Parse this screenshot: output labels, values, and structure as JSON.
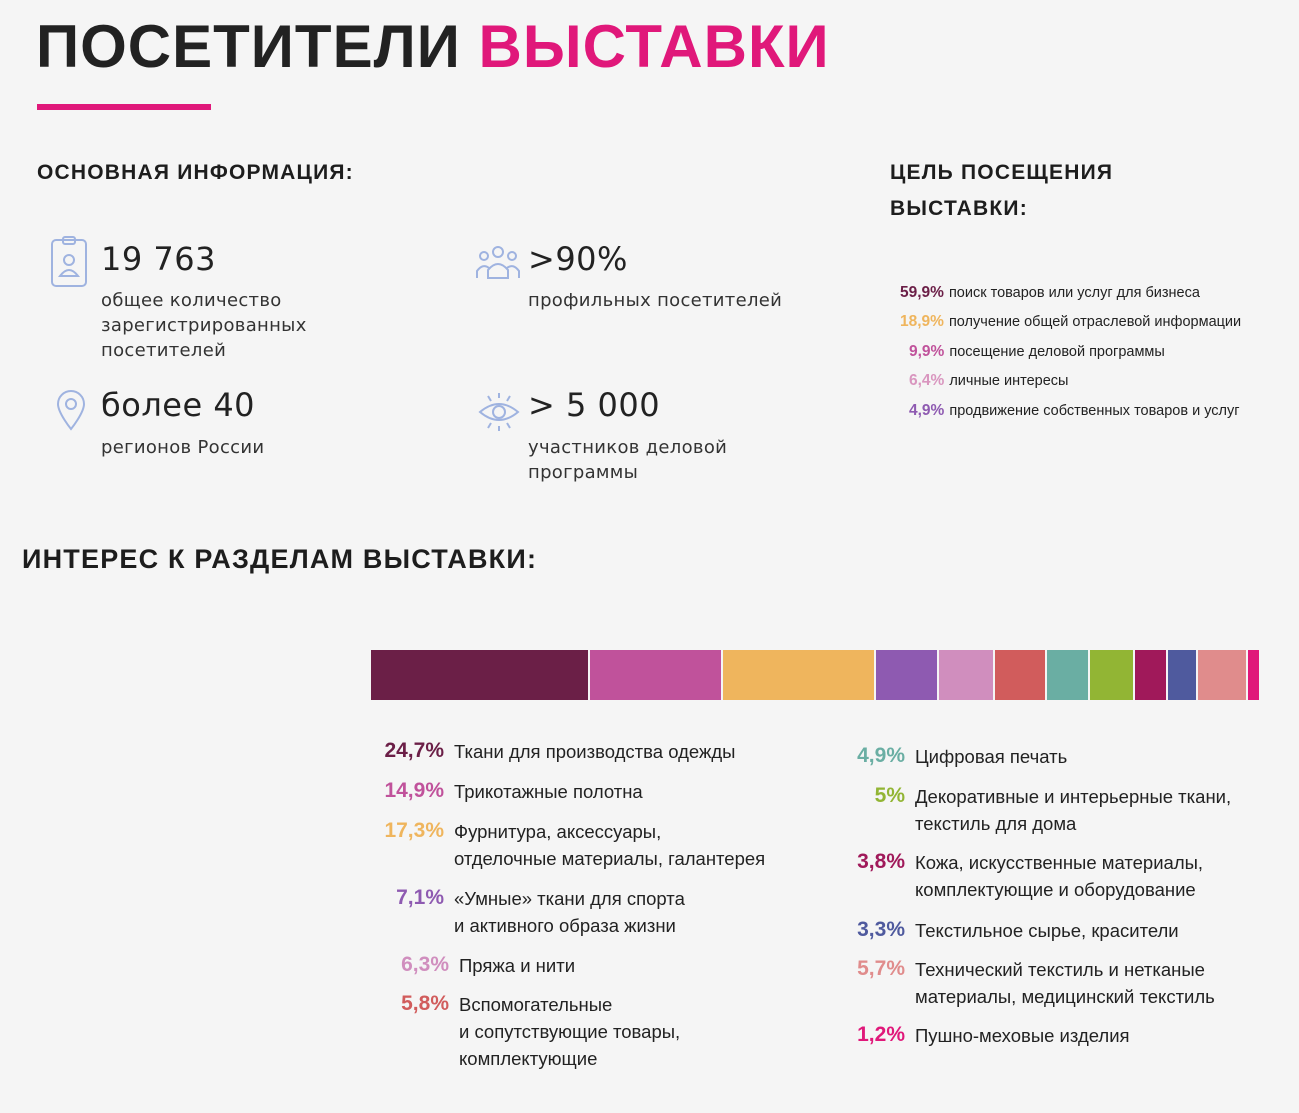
{
  "header": {
    "title_part1": "ПОСЕТИТЕЛИ",
    "title_part2": "ВЫСТАВКИ",
    "accent_color": "#e0187a"
  },
  "basic_info": {
    "heading": "ОСНОВНАЯ ИНФОРМАЦИЯ:",
    "stats": [
      {
        "icon": "id-badge-icon",
        "value": "19 763",
        "desc": "общее количество зарегистрированных посетителей"
      },
      {
        "icon": "group-icon",
        "value": ">90%",
        "desc": "профильных посетителей"
      },
      {
        "icon": "map-pin-icon",
        "value": "более 40",
        "desc": "регионов России"
      },
      {
        "icon": "eye-icon",
        "value": "> 5 000",
        "desc": "участников деловой программы"
      }
    ],
    "icon_color": "#9fb3e0"
  },
  "visit_goal": {
    "heading": "ЦЕЛЬ ПОСЕЩЕНИЯ ВЫСТАВКИ:",
    "items": [
      {
        "pct": "59,9%",
        "label": "поиск товаров или услуг для бизнеса",
        "color": "#6b1f47"
      },
      {
        "pct": "18,9%",
        "label": "получение общей отраслевой информации",
        "color": "#efb55d"
      },
      {
        "pct": "9,9%",
        "label": "посещение деловой программы",
        "color": "#c0529b"
      },
      {
        "pct": "6,4%",
        "label": "личные интересы",
        "color": "#d996bf"
      },
      {
        "pct": "4,9%",
        "label": "продвижение собственных товаров и услуг",
        "color": "#8e5ab1"
      }
    ]
  },
  "sections_interest": {
    "heading": "ИНТЕРЕС К РАЗДЕЛАМ ВЫСТАВКИ:"
  },
  "chart_data": {
    "type": "bar",
    "orientation": "horizontal-stacked",
    "title": "ИНТЕРЕС К РАЗДЕЛАМ ВЫСТАВКИ:",
    "categories": [
      "Ткани для производства одежды",
      "Трикотажные полотна",
      "Фурнитура, аксессуары, отделочные материалы, галантерея",
      "«Умные» ткани для спорта и активного образа жизни",
      "Пряжа и нити",
      "Вспомогательные и сопутствующие товары, комплектующие",
      "Цифровая печать",
      "Декоративные и интерьерные ткани, текстиль для дома",
      "Кожа, искусственные материалы, комплектующие и оборудование",
      "Текстильное сырье, красители",
      "Технический текстиль и нетканые материалы, медицинский текстиль",
      "Пушно-меховые изделия"
    ],
    "values": [
      24.7,
      14.9,
      17.3,
      7.1,
      6.3,
      5.8,
      4.9,
      5,
      3.8,
      3.3,
      5.7,
      1.2
    ],
    "value_labels": [
      "24,7%",
      "14,9%",
      "17,3%",
      "7,1%",
      "6,3%",
      "5,8%",
      "4,9%",
      "5%",
      "3,8%",
      "3,3%",
      "5,7%",
      "1,2%"
    ],
    "colors": [
      "#6b1f47",
      "#c0529b",
      "#efb55d",
      "#8e5ab1",
      "#d08ebe",
      "#d15c5c",
      "#6aaea3",
      "#92b534",
      "#a0195a",
      "#4f5a9e",
      "#e08c8c",
      "#e0187a"
    ],
    "legend_labels": [
      "Ткани для производства одежды",
      "Трикотажные полотна",
      "Фурнитура, аксессуары,\nотделочные материалы, галантерея",
      "«Умные» ткани для спорта\nи активного образа жизни",
      "Пряжа и нити",
      "Вспомогательные\nи сопутствующие товары,\nкомплектующие",
      "Цифровая печать",
      "Декоративные и интерьерные ткани,\nтекстиль для дома",
      "Кожа, искусственные материалы,\nкомплектующие и оборудование",
      "Текстильное сырье, красители",
      "Технический текстиль и нетканые\nматериалы, медицинский текстиль",
      "Пушно-меховые изделия"
    ],
    "legend_pct_colors": [
      "#6b1f47",
      "#c0529b",
      "#efb55d",
      "#8e5ab1",
      "#d08ebe",
      "#d15c5c",
      "#6aaea3",
      "#92b534",
      "#a0195a",
      "#4f5a9e",
      "#e08c8c",
      "#e0187a"
    ]
  }
}
